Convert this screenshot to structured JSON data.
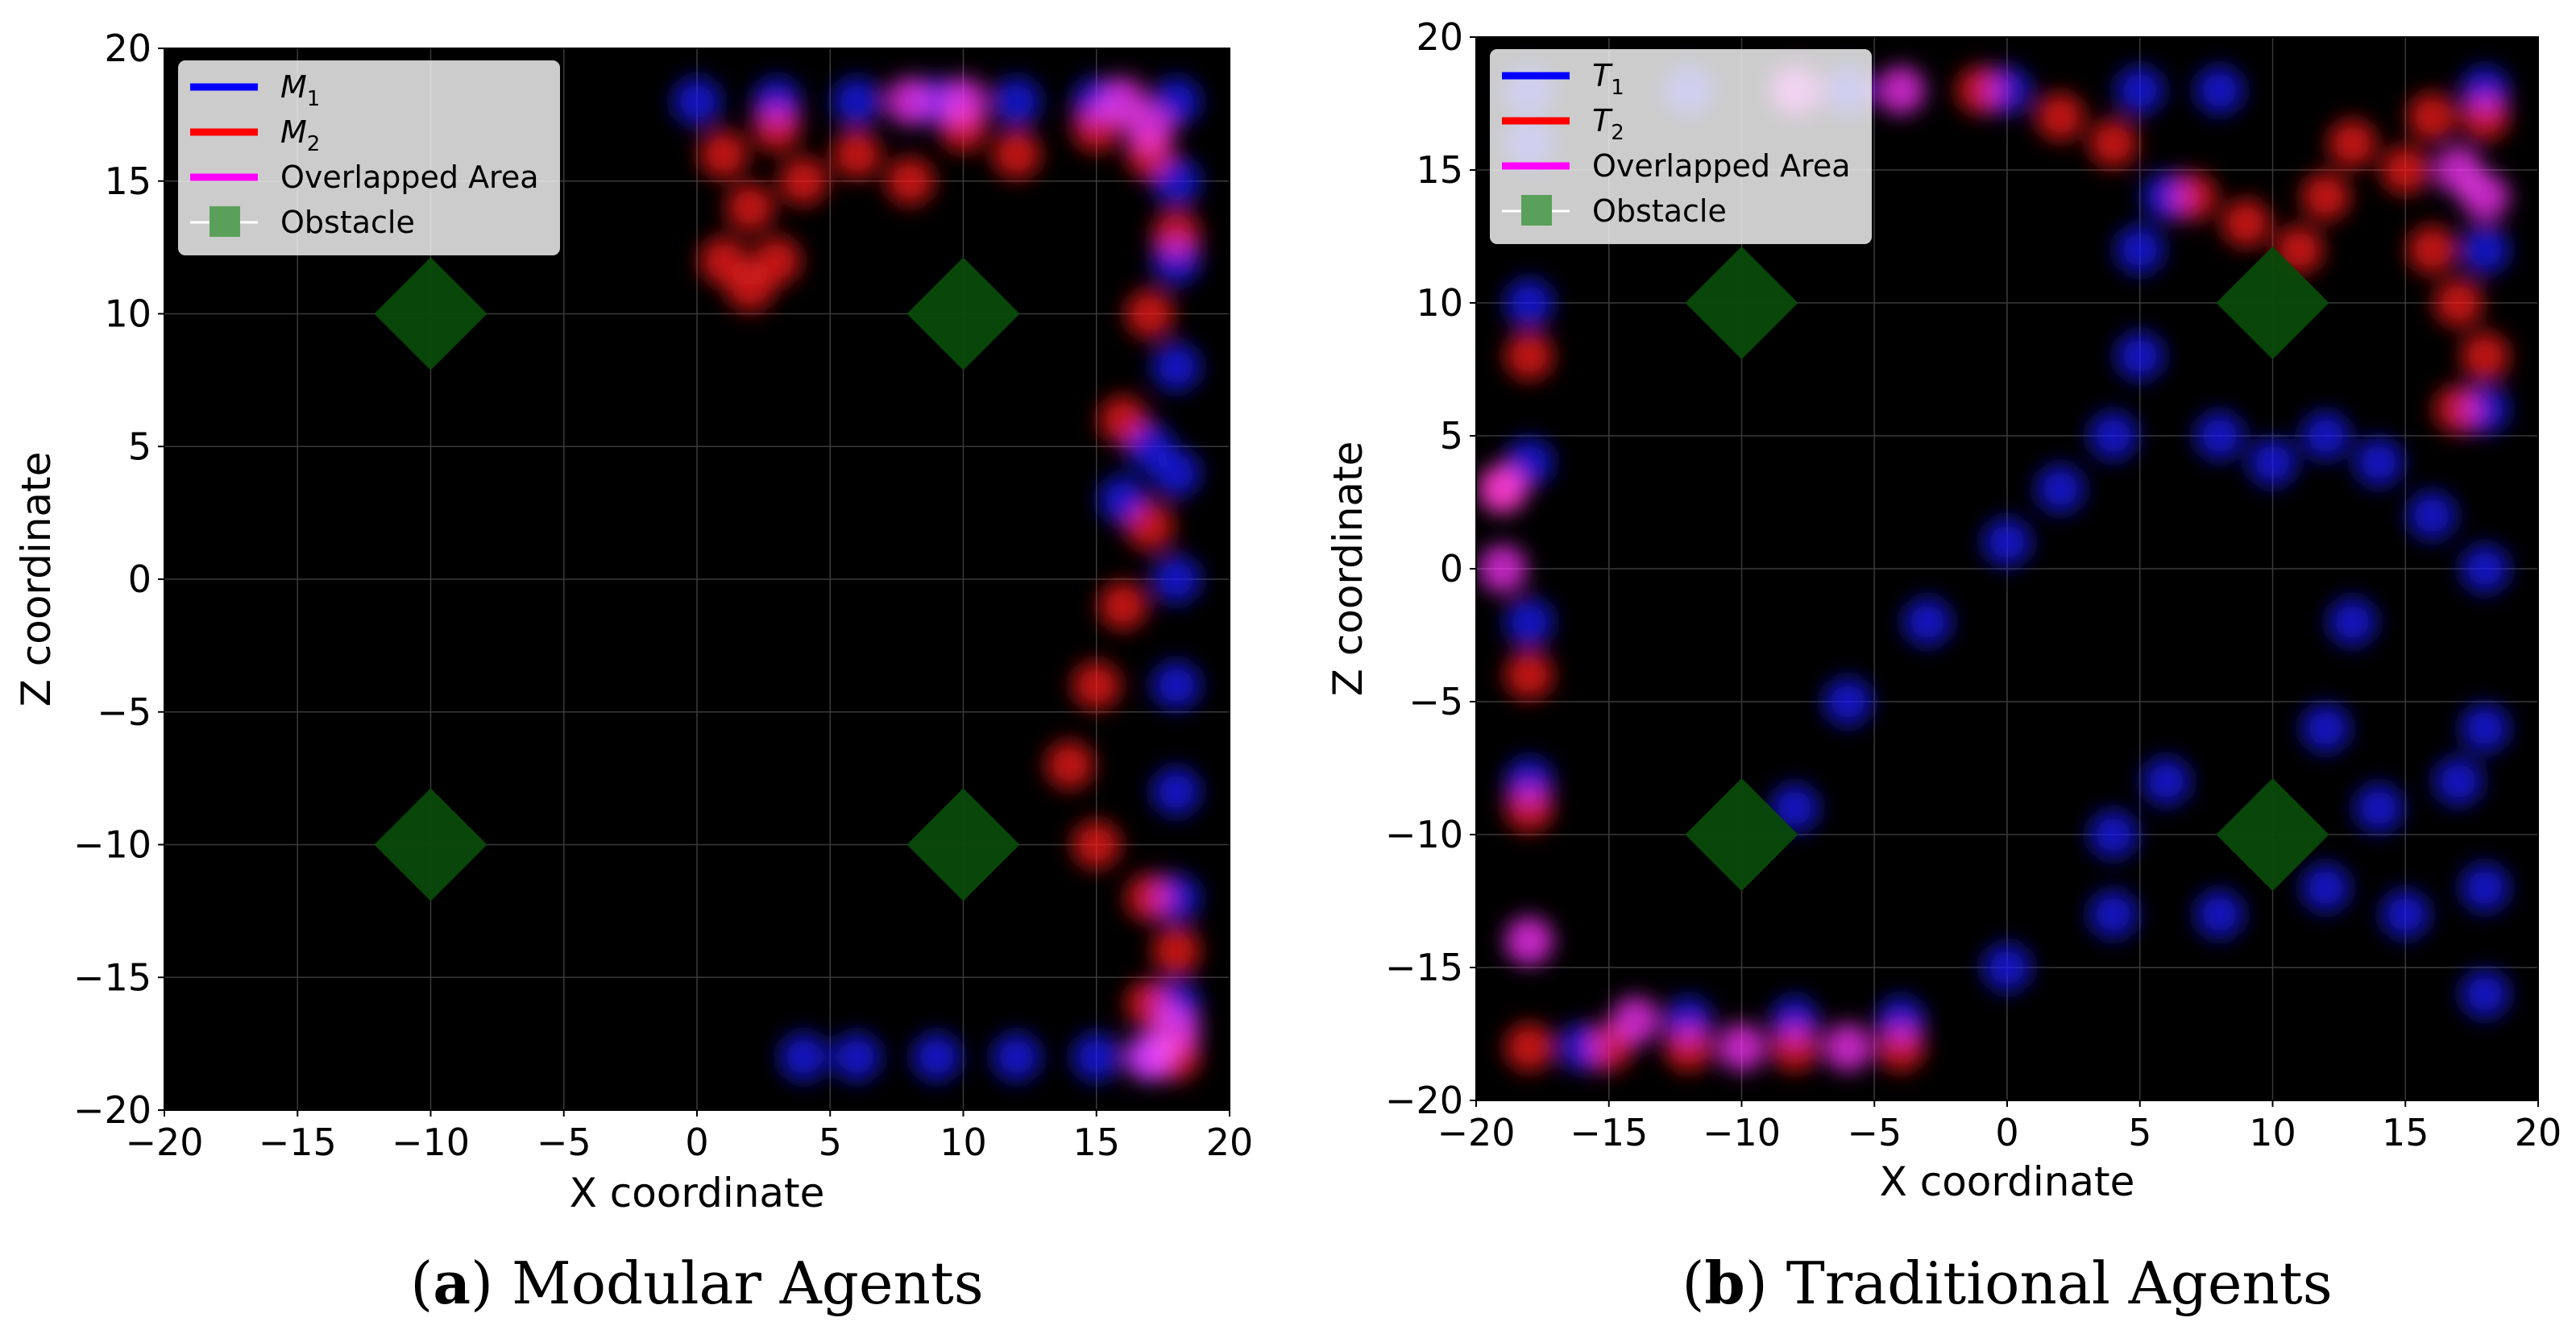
{
  "chart_data": [
    {
      "type": "heatmap",
      "panel": "a",
      "caption_letter": "a",
      "caption_text": "Modular Agents",
      "xlabel": "X coordinate",
      "ylabel": "Z coordinate",
      "xlim": [
        -20,
        20
      ],
      "ylim": [
        -20,
        20
      ],
      "xticks": [
        "−20",
        "−15",
        "−10",
        "−5",
        "0",
        "5",
        "10",
        "15",
        "20"
      ],
      "yticks": [
        "−20",
        "−15",
        "−10",
        "−5",
        "0",
        "5",
        "10",
        "15",
        "20"
      ],
      "grid": true,
      "background": "#000000",
      "legend_position": "top-left",
      "legend": [
        {
          "label": "M",
          "sub": "1",
          "italic": true,
          "marker": "line",
          "color": "#0000ff"
        },
        {
          "label": "M",
          "sub": "2",
          "italic": true,
          "marker": "line",
          "color": "#ff0000"
        },
        {
          "label": "Overlapped Area",
          "sub": "",
          "italic": false,
          "marker": "line",
          "color": "#ff00ff"
        },
        {
          "label": "Obstacle",
          "sub": "",
          "italic": false,
          "marker": "square",
          "color": "#5aa05a"
        }
      ],
      "obstacles": [
        [
          -10,
          10
        ],
        [
          10,
          10
        ],
        [
          -10,
          -10
        ],
        [
          10,
          -10
        ]
      ],
      "series": [
        {
          "name": "M1",
          "color": "#1a1aff",
          "points": [
            [
              0,
              18
            ],
            [
              3,
              18
            ],
            [
              6,
              18
            ],
            [
              9,
              18
            ],
            [
              12,
              18
            ],
            [
              15,
              18
            ],
            [
              18,
              18
            ],
            [
              18,
              15
            ],
            [
              18,
              12
            ],
            [
              18,
              8
            ],
            [
              18,
              4
            ],
            [
              17,
              5
            ],
            [
              16,
              3
            ],
            [
              18,
              0
            ],
            [
              18,
              -4
            ],
            [
              18,
              -8
            ],
            [
              18,
              -12
            ],
            [
              18,
              -16
            ],
            [
              17,
              -18
            ],
            [
              15,
              -18
            ],
            [
              12,
              -18
            ],
            [
              9,
              -18
            ],
            [
              6,
              -18
            ],
            [
              4,
              -18
            ]
          ]
        },
        {
          "name": "M2",
          "color": "#ff1a1a",
          "points": [
            [
              1,
              12
            ],
            [
              2,
              14
            ],
            [
              1,
              16
            ],
            [
              3,
              17
            ],
            [
              4,
              15
            ],
            [
              3,
              12
            ],
            [
              2,
              11
            ],
            [
              6,
              16
            ],
            [
              8,
              15
            ],
            [
              10,
              17
            ],
            [
              12,
              16
            ],
            [
              15,
              17
            ],
            [
              17,
              16
            ],
            [
              18,
              13
            ],
            [
              17,
              10
            ],
            [
              16,
              6
            ],
            [
              17,
              2
            ],
            [
              16,
              -1
            ],
            [
              15,
              -4
            ],
            [
              14,
              -7
            ],
            [
              15,
              -10
            ],
            [
              17,
              -12
            ],
            [
              18,
              -14
            ],
            [
              17,
              -16
            ],
            [
              18,
              -18
            ]
          ]
        },
        {
          "name": "Overlapped Area",
          "color": "#ff33ff",
          "points": [
            [
              8,
              18
            ],
            [
              10,
              18
            ],
            [
              16,
              18
            ],
            [
              17,
              17
            ],
            [
              17,
              -18
            ],
            [
              18,
              -17
            ]
          ]
        }
      ]
    },
    {
      "type": "heatmap",
      "panel": "b",
      "caption_letter": "b",
      "caption_text": "Traditional Agents",
      "xlabel": "X coordinate",
      "ylabel": "Z coordinate",
      "xlim": [
        -20,
        20
      ],
      "ylim": [
        -20,
        20
      ],
      "xticks": [
        "−20",
        "−15",
        "−10",
        "−5",
        "0",
        "5",
        "10",
        "15",
        "20"
      ],
      "yticks": [
        "−20",
        "−15",
        "−10",
        "−5",
        "0",
        "5",
        "10",
        "15",
        "20"
      ],
      "grid": true,
      "background": "#000000",
      "legend_position": "top-left",
      "legend": [
        {
          "label": "T",
          "sub": "1",
          "italic": true,
          "marker": "line",
          "color": "#0000ff"
        },
        {
          "label": "T",
          "sub": "2",
          "italic": true,
          "marker": "line",
          "color": "#ff0000"
        },
        {
          "label": "Overlapped Area",
          "sub": "",
          "italic": false,
          "marker": "line",
          "color": "#ff00ff"
        },
        {
          "label": "Obstacle",
          "sub": "",
          "italic": false,
          "marker": "square",
          "color": "#5aa05a"
        }
      ],
      "obstacles": [
        [
          -10,
          10
        ],
        [
          10,
          10
        ],
        [
          -10,
          -10
        ],
        [
          10,
          -10
        ]
      ],
      "series": [
        {
          "name": "T1",
          "color": "#1a1aff",
          "points": [
            [
              -18,
              18
            ],
            [
              -12,
              18
            ],
            [
              -6,
              18
            ],
            [
              0,
              18
            ],
            [
              5,
              18
            ],
            [
              8,
              18
            ],
            [
              18,
              18
            ],
            [
              18,
              12
            ],
            [
              18,
              6
            ],
            [
              18,
              0
            ],
            [
              18,
              -6
            ],
            [
              18,
              -12
            ],
            [
              18,
              -16
            ],
            [
              15,
              -13
            ],
            [
              12,
              -12
            ],
            [
              8,
              -13
            ],
            [
              4,
              -13
            ],
            [
              0,
              -15
            ],
            [
              -4,
              -17
            ],
            [
              -8,
              -17
            ],
            [
              -12,
              -17
            ],
            [
              -16,
              -18
            ],
            [
              -18,
              -14
            ],
            [
              -18,
              -8
            ],
            [
              -18,
              -2
            ],
            [
              -18,
              4
            ],
            [
              -18,
              10
            ],
            [
              -18,
              16
            ],
            [
              -8,
              -9
            ],
            [
              -6,
              -5
            ],
            [
              -3,
              -2
            ],
            [
              0,
              1
            ],
            [
              2,
              3
            ],
            [
              4,
              5
            ],
            [
              5,
              8
            ],
            [
              5,
              12
            ],
            [
              6,
              14
            ],
            [
              8,
              5
            ],
            [
              10,
              4
            ],
            [
              12,
              5
            ],
            [
              14,
              4
            ],
            [
              16,
              2
            ],
            [
              13,
              -2
            ],
            [
              12,
              -6
            ],
            [
              14,
              -9
            ],
            [
              17,
              -8
            ],
            [
              6,
              -8
            ],
            [
              4,
              -10
            ]
          ]
        },
        {
          "name": "T2",
          "color": "#ff1a1a",
          "points": [
            [
              -18,
              -18
            ],
            [
              -15,
              -18
            ],
            [
              -12,
              -18
            ],
            [
              -8,
              -18
            ],
            [
              -4,
              -18
            ],
            [
              -18,
              -14
            ],
            [
              -18,
              -9
            ],
            [
              -18,
              -4
            ],
            [
              -19,
              3
            ],
            [
              -18,
              8
            ],
            [
              -1,
              18
            ],
            [
              2,
              17
            ],
            [
              4,
              16
            ],
            [
              7,
              14
            ],
            [
              9,
              13
            ],
            [
              11,
              12
            ],
            [
              12,
              14
            ],
            [
              13,
              16
            ],
            [
              15,
              15
            ],
            [
              16,
              12
            ],
            [
              17,
              10
            ],
            [
              18,
              8
            ],
            [
              17,
              6
            ],
            [
              16,
              17
            ],
            [
              18,
              17
            ]
          ]
        },
        {
          "name": "Overlapped Area",
          "color": "#ff33ff",
          "points": [
            [
              -19,
              0
            ],
            [
              -19,
              3
            ],
            [
              -14,
              -17
            ],
            [
              -10,
              -18
            ],
            [
              -6,
              -18
            ],
            [
              17,
              15
            ],
            [
              18,
              14
            ],
            [
              -8,
              18
            ],
            [
              -4,
              18
            ]
          ]
        }
      ]
    }
  ]
}
